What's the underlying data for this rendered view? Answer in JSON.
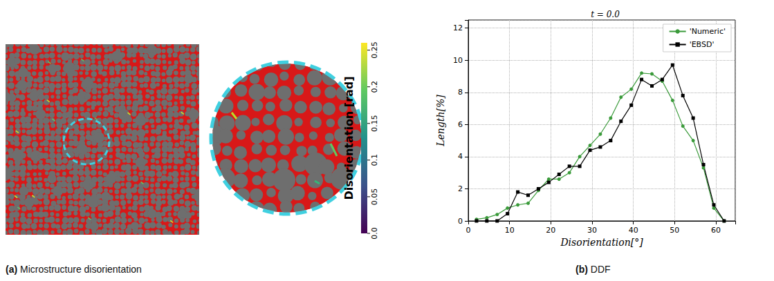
{
  "panel_a": {
    "caption": "(a) Microstructure disorientation",
    "colorbar": {
      "label": "Disorientation [rad]",
      "range": [
        0,
        0.26
      ],
      "ticks": [
        {
          "value": 0,
          "label": "0.0"
        },
        0.05,
        0.1,
        0.15,
        0.2,
        0.25
      ]
    }
  },
  "chart_data": {
    "type": "line",
    "caption": "(b) DDF",
    "title": "t = 0.0",
    "x_label": "Disorientation[°]",
    "y_label": "Length[%]",
    "xlim": [
      0,
      64.7
    ],
    "xticks": [
      0,
      10,
      20,
      30,
      40,
      50,
      60
    ],
    "ylim": [
      0,
      12.5
    ],
    "yticks": [
      0,
      2,
      4,
      6,
      8,
      10,
      12
    ],
    "grid": true,
    "legend": "upper right",
    "x": [
      2,
      4.5,
      7,
      9.5,
      12,
      14.5,
      17,
      19.5,
      22,
      24.5,
      27,
      29.5,
      32,
      34.5,
      37,
      39.5,
      42,
      44.5,
      47,
      49.5,
      52,
      54.5,
      57,
      59.5,
      62
    ],
    "series": [
      {
        "name": "'Numeric'",
        "color": "#3a9a3a",
        "marker": "circle",
        "values": [
          0.1,
          0.2,
          0.4,
          0.8,
          1.0,
          1.1,
          1.9,
          2.6,
          2.6,
          3.0,
          4.0,
          4.7,
          5.4,
          6.4,
          7.7,
          8.2,
          9.2,
          9.15,
          8.7,
          7.5,
          5.9,
          5.0,
          3.3,
          0.8,
          0.0
        ]
      },
      {
        "name": "'EBSD'",
        "color": "#000000",
        "marker": "square",
        "values": [
          0.0,
          0.0,
          0.0,
          0.45,
          1.8,
          1.6,
          2.0,
          2.4,
          2.9,
          3.4,
          3.4,
          4.4,
          4.6,
          5.0,
          6.2,
          7.2,
          8.8,
          8.4,
          8.8,
          9.7,
          7.8,
          6.4,
          3.5,
          1.0,
          0.0
        ]
      }
    ]
  }
}
